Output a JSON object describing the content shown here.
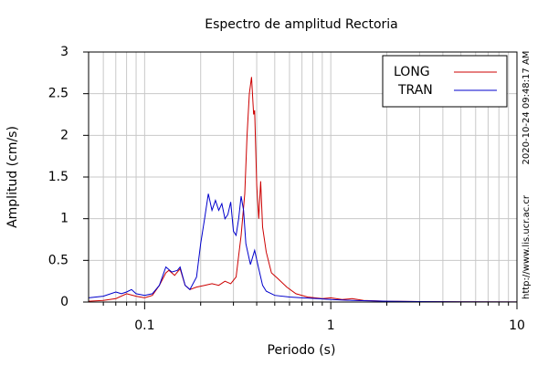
{
  "chart_data": {
    "type": "line",
    "title": "Espectro de amplitud Rectoria",
    "xlabel": "Periodo (s)",
    "ylabel": "Amplitud (cm/s)",
    "xscale": "log",
    "xlim": [
      0.05,
      10
    ],
    "ylim": [
      0,
      3
    ],
    "xticks": [
      0.1,
      1,
      10
    ],
    "xminor_ticks": [
      0.06,
      0.07,
      0.08,
      0.09,
      0.2,
      0.3,
      0.4,
      0.5,
      0.6,
      0.7,
      0.8,
      0.9,
      2,
      3,
      4,
      5,
      6,
      7,
      8,
      9
    ],
    "yticks": [
      0,
      0.5,
      1,
      1.5,
      2,
      2.5,
      3
    ],
    "grid": true,
    "legend": "upper right",
    "side_notes": [
      "2020-10-24 09:48:17 AM",
      "http://www.lis.ucr.ac.cr"
    ],
    "series": [
      {
        "name": "LONG",
        "color": "#cc0000",
        "x": [
          0.05,
          0.06,
          0.07,
          0.08,
          0.09,
          0.1,
          0.11,
          0.12,
          0.13,
          0.135,
          0.145,
          0.155,
          0.165,
          0.175,
          0.19,
          0.21,
          0.23,
          0.25,
          0.27,
          0.29,
          0.31,
          0.33,
          0.345,
          0.355,
          0.365,
          0.375,
          0.385,
          0.39,
          0.4,
          0.41,
          0.42,
          0.43,
          0.45,
          0.48,
          0.52,
          0.58,
          0.65,
          0.75,
          0.9,
          1.0,
          1.15,
          1.3,
          1.5,
          2,
          3,
          5,
          10
        ],
        "values": [
          0.01,
          0.02,
          0.04,
          0.1,
          0.07,
          0.05,
          0.08,
          0.2,
          0.35,
          0.38,
          0.32,
          0.4,
          0.2,
          0.15,
          0.18,
          0.2,
          0.22,
          0.2,
          0.25,
          0.22,
          0.3,
          0.8,
          1.3,
          2.0,
          2.5,
          2.7,
          2.25,
          2.3,
          1.4,
          1.0,
          1.45,
          0.9,
          0.6,
          0.35,
          0.28,
          0.18,
          0.1,
          0.06,
          0.04,
          0.05,
          0.03,
          0.04,
          0.02,
          0.01,
          0.005,
          0.002,
          0.001
        ]
      },
      {
        "name": "TRAN",
        "color": "#0000cc",
        "x": [
          0.05,
          0.06,
          0.07,
          0.075,
          0.08,
          0.085,
          0.09,
          0.1,
          0.11,
          0.12,
          0.13,
          0.14,
          0.15,
          0.155,
          0.165,
          0.175,
          0.19,
          0.2,
          0.21,
          0.22,
          0.23,
          0.24,
          0.25,
          0.26,
          0.27,
          0.28,
          0.29,
          0.3,
          0.31,
          0.32,
          0.33,
          0.34,
          0.35,
          0.37,
          0.39,
          0.41,
          0.43,
          0.45,
          0.5,
          0.6,
          0.7,
          0.85,
          1.0,
          1.3,
          2,
          3,
          5,
          10
        ],
        "values": [
          0.05,
          0.07,
          0.12,
          0.1,
          0.12,
          0.15,
          0.1,
          0.08,
          0.1,
          0.2,
          0.42,
          0.36,
          0.38,
          0.42,
          0.2,
          0.15,
          0.3,
          0.7,
          1.0,
          1.3,
          1.1,
          1.22,
          1.1,
          1.18,
          1.0,
          1.05,
          1.2,
          0.85,
          0.8,
          1.0,
          1.27,
          1.1,
          0.7,
          0.45,
          0.62,
          0.4,
          0.2,
          0.13,
          0.08,
          0.06,
          0.05,
          0.04,
          0.03,
          0.02,
          0.01,
          0.005,
          0.002,
          0.001
        ]
      }
    ]
  }
}
